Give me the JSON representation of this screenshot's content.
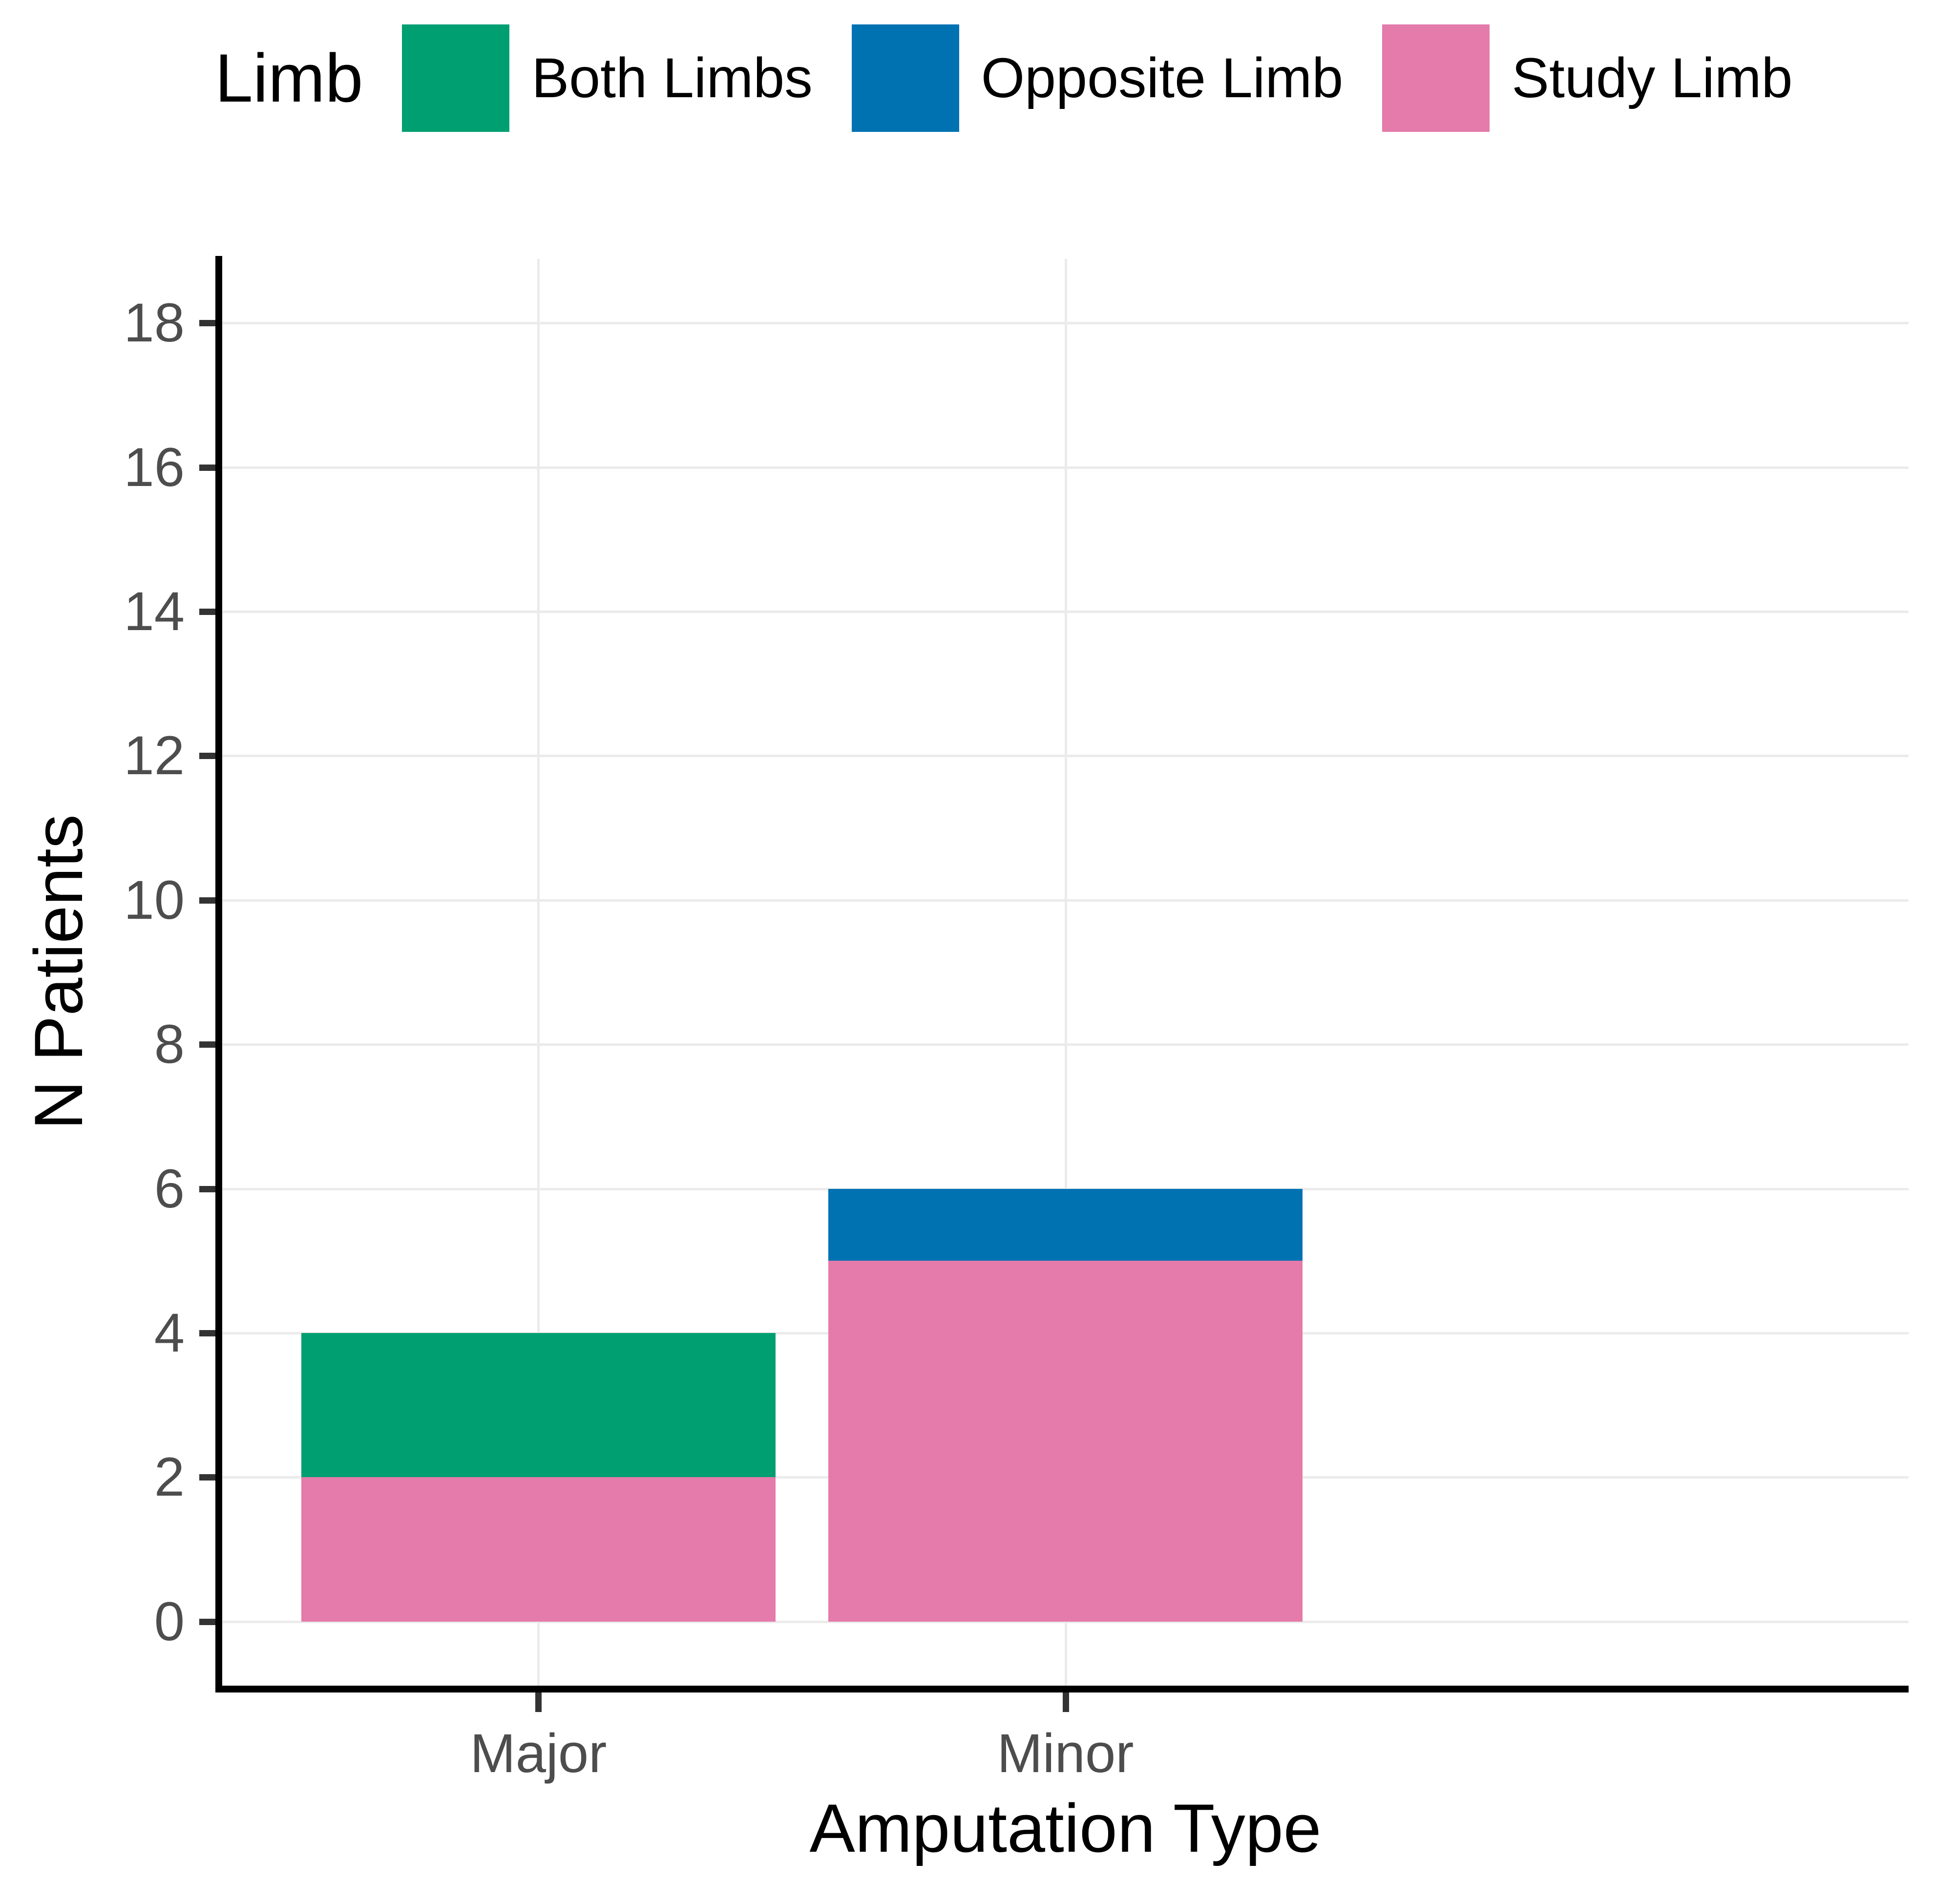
{
  "figure": {
    "legend": {
      "title": "Limb",
      "items": [
        {
          "label": "Both Limbs",
          "color": "#009F72"
        },
        {
          "label": "Opposite Limb",
          "color": "#0072B2"
        },
        {
          "label": "Study Limb",
          "color": "#E47BAA"
        }
      ]
    },
    "y_axis": {
      "title": "N Patients"
    },
    "x_axis": {
      "title": "Amputation Type"
    }
  },
  "chart_data": {
    "type": "bar",
    "stacked": true,
    "orientation": "vertical",
    "title": "",
    "xlabel": "Amputation Type",
    "ylabel": "N Patients",
    "categories": [
      "Major",
      "Minor"
    ],
    "series": [
      {
        "name": "Study Limb",
        "color": "#E47BAA",
        "values": [
          2,
          5
        ]
      },
      {
        "name": "Opposite Limb",
        "color": "#0072B2",
        "values": [
          0,
          1
        ]
      },
      {
        "name": "Both Limbs",
        "color": "#009F72",
        "values": [
          2,
          0
        ]
      }
    ],
    "stack_order": "bottom-to-top",
    "totals": [
      4,
      6
    ],
    "yticks": [
      0,
      2,
      4,
      6,
      8,
      10,
      12,
      14,
      16,
      18
    ],
    "ylim": [
      -0.89,
      18.89
    ],
    "bar_width_fraction": 0.9,
    "discrete_expand": 0.6,
    "legend_position": "top",
    "grid": {
      "horizontal": "major",
      "vertical": "category-centers",
      "color": "#EBEBEB"
    },
    "style_colors": {
      "axis_line": "#000000",
      "tick_mark": "#333333",
      "tick_label": "#4D4D4D",
      "axis_title": "#000000",
      "background": "#FFFFFF"
    }
  }
}
